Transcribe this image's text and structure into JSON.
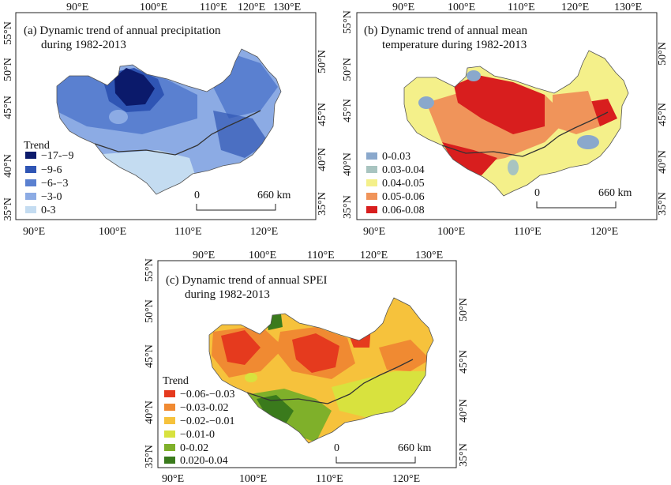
{
  "panel_a": {
    "title_line1": "(a)  Dynamic trend of annual precipitation",
    "title_line2": "during 1982-2013",
    "top_ticks": [
      "90°E",
      "100°E",
      "110°E",
      "120°E",
      "130°E"
    ],
    "bottom_ticks": [
      "90°E",
      "100°E",
      "110°E",
      "120°E"
    ],
    "left_ticks": [
      "55°N",
      "50°N",
      "45°N",
      "40°N",
      "35°N"
    ],
    "right_ticks": [
      "50°N",
      "45°N",
      "40°N",
      "35°N"
    ],
    "legend_title": "Trend",
    "legend": [
      {
        "label": "−17-−9",
        "color": "#0b1a6b"
      },
      {
        "label": "−9-6",
        "color": "#2f55b4"
      },
      {
        "label": "−6-−3",
        "color": "#5a80d0"
      },
      {
        "label": "−3-0",
        "color": "#8cabe4"
      },
      {
        "label": "0-3",
        "color": "#c4dcf1"
      }
    ],
    "scale": {
      "start": "0",
      "end": "660 km"
    }
  },
  "panel_b": {
    "title_line1": "(b)  Dynamic trend of annual mean",
    "title_line2": "temperature during 1982-2013",
    "top_ticks": [
      "90°E",
      "100°E",
      "110°E",
      "120°E",
      "130°E"
    ],
    "bottom_ticks": [
      "90°E",
      "100°E",
      "110°E",
      "120°E"
    ],
    "left_ticks": [
      "55°N",
      "50°N",
      "45°N",
      "40°N",
      "35°N"
    ],
    "right_ticks": [
      "50°N",
      "45°N",
      "40°N",
      "35°N"
    ],
    "legend_title": "",
    "legend": [
      {
        "label": "0-0.03",
        "color": "#8aa8cc"
      },
      {
        "label": "0.03-0.04",
        "color": "#a8c4c0"
      },
      {
        "label": "0.04-0.05",
        "color": "#f4f08a"
      },
      {
        "label": "0.05-0.06",
        "color": "#f0945a"
      },
      {
        "label": "0.06-0.08",
        "color": "#d81e1e"
      }
    ],
    "scale": {
      "start": "0",
      "end": "660 km"
    }
  },
  "panel_c": {
    "title_line1": "(c)  Dynamic trend of annual SPEI",
    "title_line2": "during 1982-2013",
    "top_ticks": [
      "90°E",
      "100°E",
      "110°E",
      "120°E",
      "130°E"
    ],
    "bottom_ticks": [
      "90°E",
      "100°E",
      "110°E",
      "120°E"
    ],
    "left_ticks": [
      "55°N",
      "50°N",
      "45°N",
      "40°N",
      "35°N"
    ],
    "right_ticks": [
      "50°N",
      "45°N",
      "40°N",
      "35°N"
    ],
    "legend_title": "Trend",
    "legend": [
      {
        "label": "−0.06-−0.03",
        "color": "#e53a1e"
      },
      {
        "label": "−0.03-0.02",
        "color": "#f08a32"
      },
      {
        "label": "−0.02-−0.01",
        "color": "#f6c23c"
      },
      {
        "label": "−0.01-0",
        "color": "#d8e23e"
      },
      {
        "label": "0-0.02",
        "color": "#7fb02a"
      },
      {
        "label": "0.020-0.04",
        "color": "#3a7a1c"
      }
    ],
    "scale": {
      "start": "0",
      "end": "660 km"
    }
  }
}
